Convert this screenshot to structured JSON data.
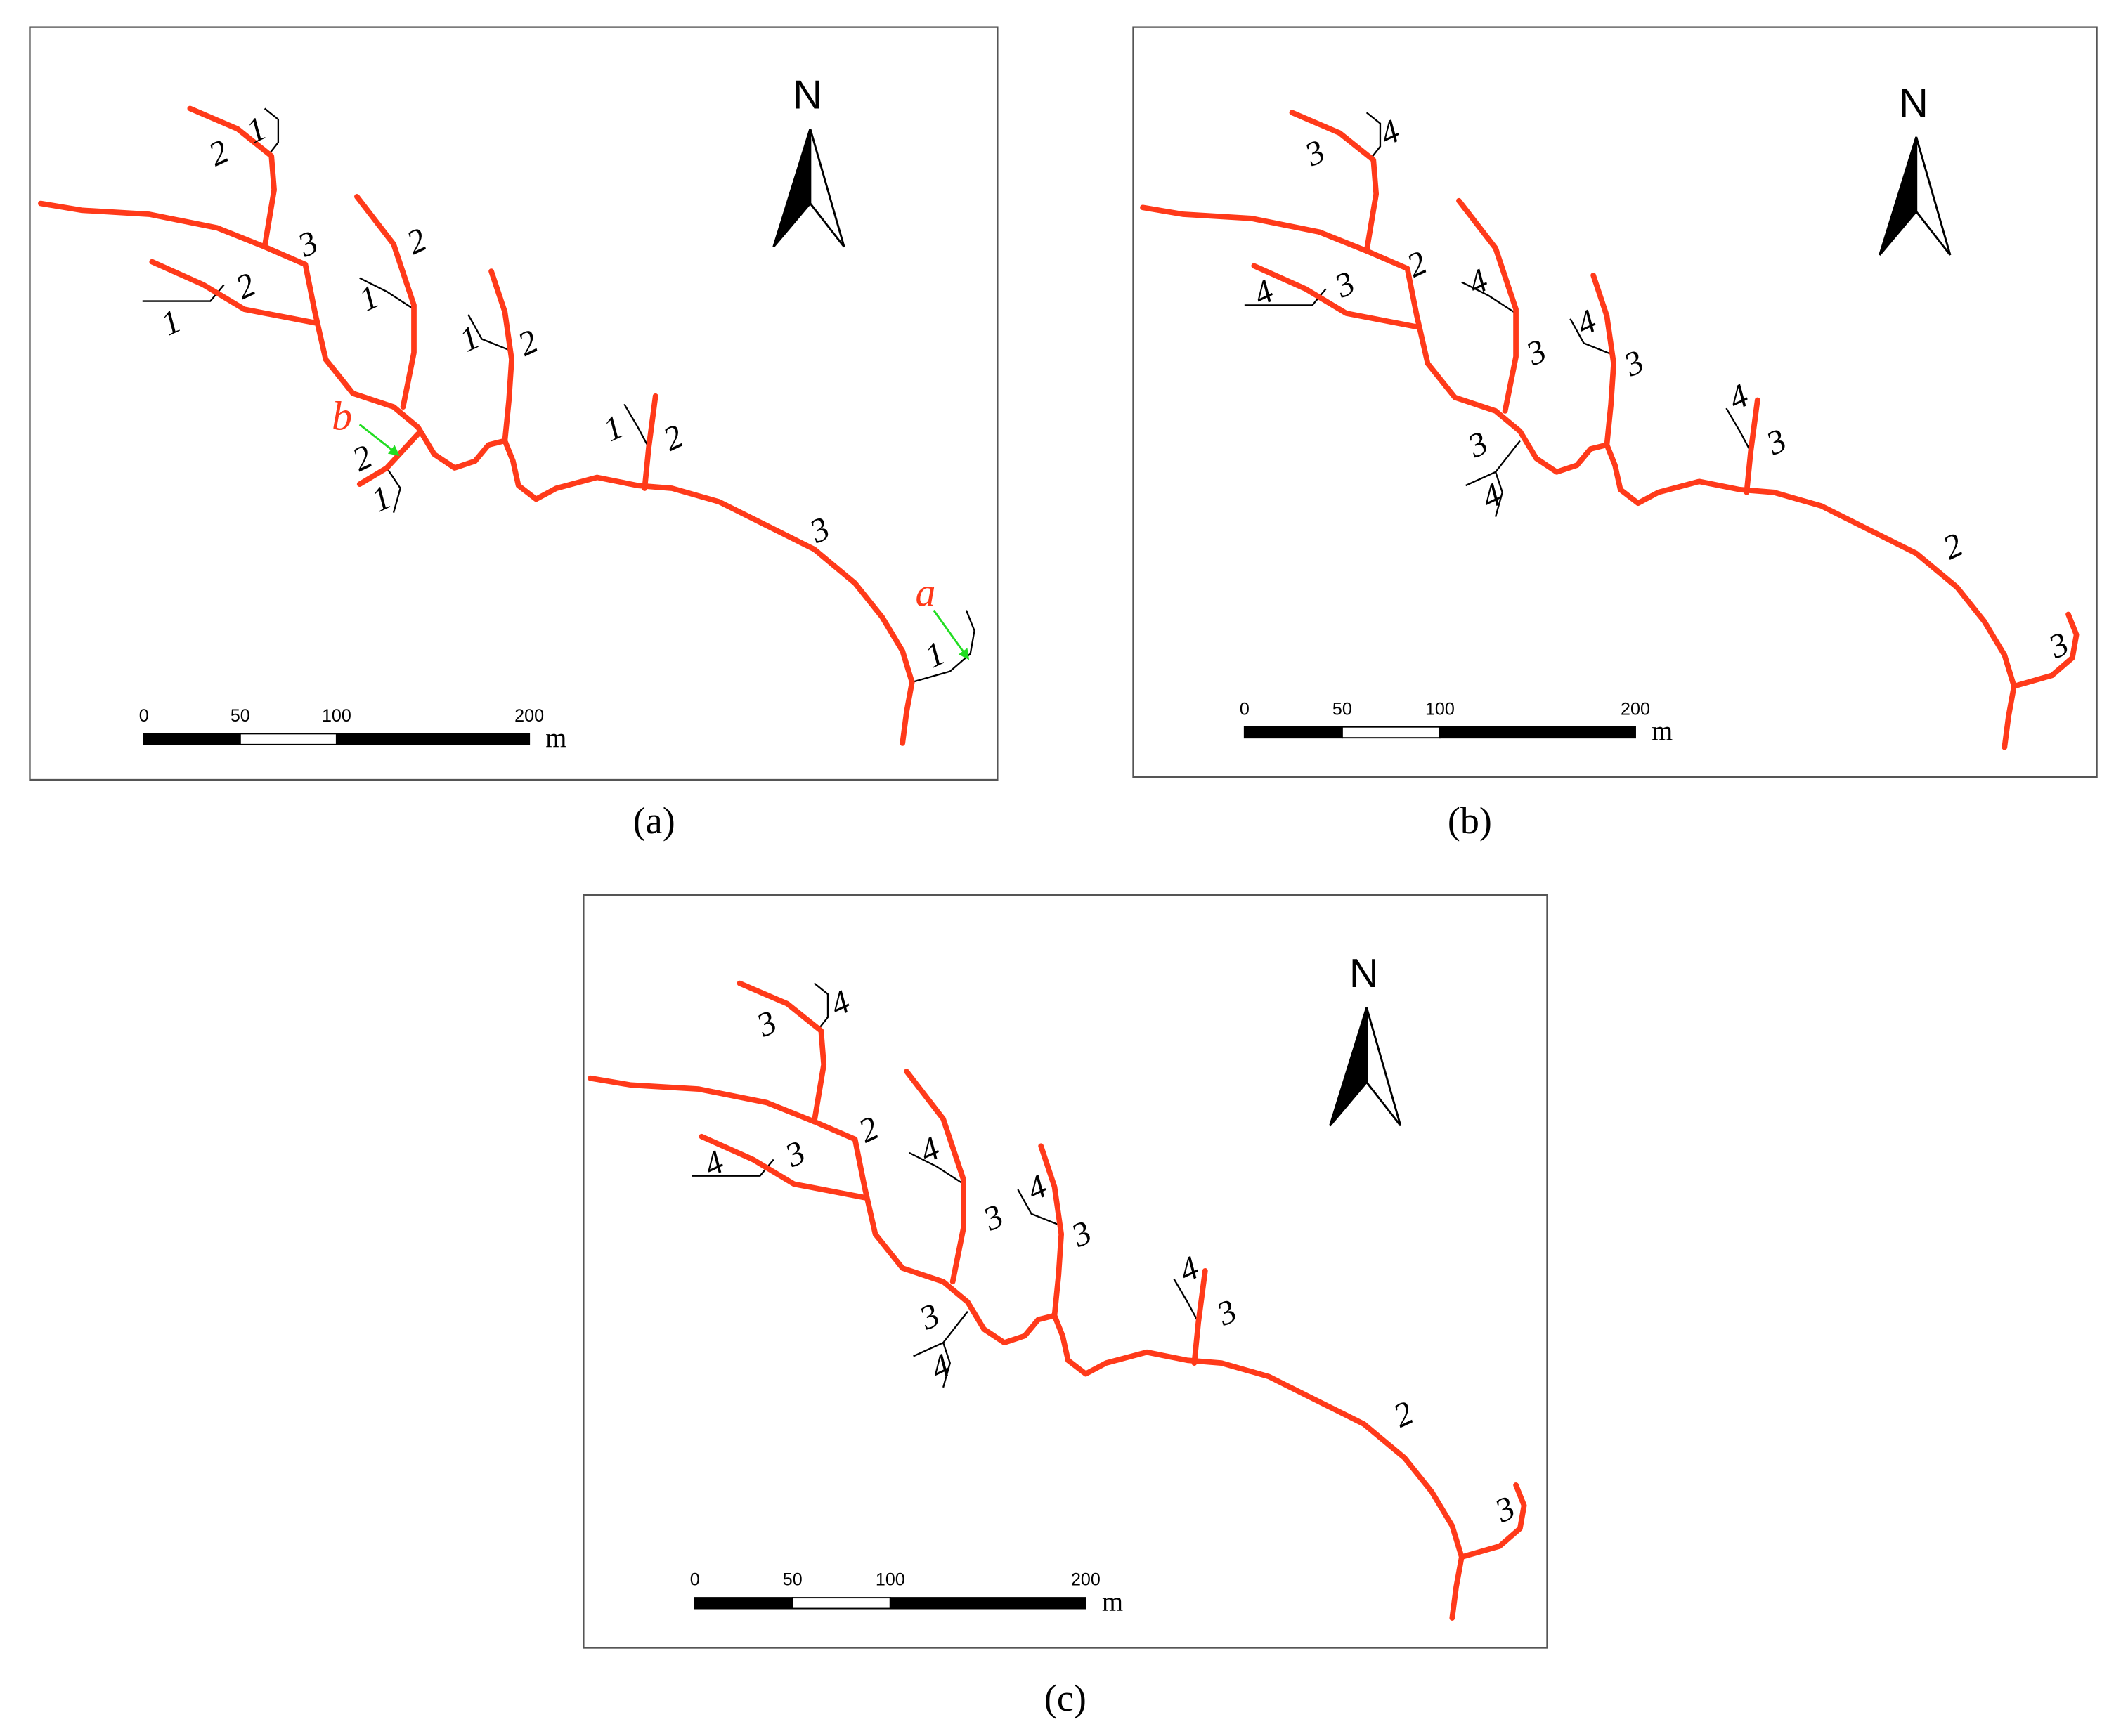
{
  "panels": [
    {
      "caption": "(a)",
      "north": "N",
      "scale": {
        "ticks": [
          0,
          50,
          100,
          200
        ],
        "unit": "m"
      },
      "order_labels": [
        "1",
        "2",
        "3",
        "2",
        "1",
        "2",
        "1",
        "1",
        "2",
        "2",
        "1",
        "1",
        "2",
        "3",
        "1"
      ],
      "annotations": [
        "b",
        "a"
      ]
    },
    {
      "caption": "(b)",
      "north": "N",
      "scale": {
        "ticks": [
          0,
          50,
          100,
          200
        ],
        "unit": "m"
      },
      "order_labels": [
        "4",
        "3",
        "2",
        "3",
        "4",
        "4",
        "3",
        "4",
        "3",
        "3",
        "4",
        "4",
        "3",
        "2",
        "3"
      ],
      "annotations": []
    },
    {
      "caption": "(c)",
      "north": "N",
      "scale": {
        "ticks": [
          0,
          50,
          100,
          200
        ],
        "unit": "m"
      },
      "order_labels": [
        "4",
        "3",
        "2",
        "3",
        "4",
        "4",
        "3",
        "4",
        "3",
        "3",
        "4",
        "4",
        "3",
        "2",
        "3"
      ],
      "annotations": []
    }
  ]
}
